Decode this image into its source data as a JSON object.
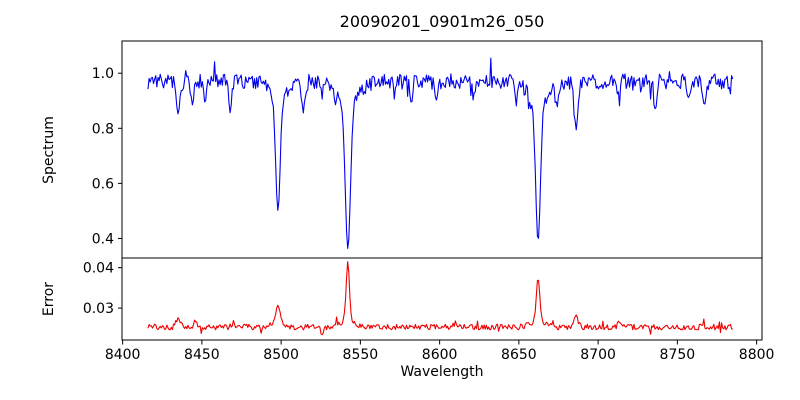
{
  "chart_data": {
    "type": "line",
    "title": "20090201_0901m26_050",
    "xlabel": "Wavelength",
    "xlim": [
      8399.6,
      8803.4
    ],
    "xticks": [
      8400,
      8450,
      8500,
      8550,
      8600,
      8650,
      8700,
      8750,
      8800
    ],
    "data_x_range": [
      8416,
      8785
    ],
    "grid": false,
    "legend": "none",
    "panels": [
      {
        "name": "spectrum",
        "ylabel": "Spectrum",
        "line_color": "#0000ee",
        "ylim": [
          0.329,
          1.117
        ],
        "yticks": [
          0.4,
          0.6,
          0.8,
          1.0
        ],
        "ytick_labels": [
          "0.4",
          "0.6",
          "0.8",
          "1.0"
        ],
        "continuum_level": 0.97,
        "noise_amplitude": 0.028,
        "down_spike": {
          "prob": 0.06,
          "max": 0.05
        },
        "up_spike": {
          "prob": 0.025,
          "max": 0.08
        },
        "x_start": 8416,
        "x_end": 8785,
        "x_step": 0.7,
        "seed": 7,
        "absorption_lines": [
          {
            "center": 8435.0,
            "depth": 0.12,
            "sigma": 1.1
          },
          {
            "center": 8444.0,
            "depth": 0.09,
            "sigma": 0.9
          },
          {
            "center": 8452.0,
            "depth": 0.08,
            "sigma": 0.9
          },
          {
            "center": 8468.0,
            "depth": 0.1,
            "sigma": 1.0
          },
          {
            "center": 8498.0,
            "depth": 0.41,
            "sigma": 1.4,
            "wing_depth": 0.06,
            "wing_sigma": 5
          },
          {
            "center": 8514.0,
            "depth": 0.1,
            "sigma": 1.1
          },
          {
            "center": 8542.1,
            "depth": 0.53,
            "sigma": 1.6,
            "wing_depth": 0.08,
            "wing_sigma": 7
          },
          {
            "center": 8582.0,
            "depth": 0.07,
            "sigma": 0.9
          },
          {
            "center": 8598.0,
            "depth": 0.07,
            "sigma": 0.9
          },
          {
            "center": 8621.0,
            "depth": 0.08,
            "sigma": 0.9
          },
          {
            "center": 8648.0,
            "depth": 0.07,
            "sigma": 0.9
          },
          {
            "center": 8662.1,
            "depth": 0.5,
            "sigma": 1.5,
            "wing_depth": 0.08,
            "wing_sigma": 6
          },
          {
            "center": 8674.0,
            "depth": 0.09,
            "sigma": 0.9
          },
          {
            "center": 8686.0,
            "depth": 0.16,
            "sigma": 1.2
          },
          {
            "center": 8713.0,
            "depth": 0.08,
            "sigma": 0.9
          },
          {
            "center": 8736.0,
            "depth": 0.08,
            "sigma": 0.9
          },
          {
            "center": 8757.0,
            "depth": 0.07,
            "sigma": 0.9
          },
          {
            "center": 8767.0,
            "depth": 0.09,
            "sigma": 0.9
          }
        ],
        "key_minima": [
          {
            "wavelength": 8498,
            "flux": 0.5
          },
          {
            "wavelength": 8542,
            "flux": 0.36
          },
          {
            "wavelength": 8662,
            "flux": 0.39
          }
        ]
      },
      {
        "name": "error",
        "ylabel": "Error",
        "line_color": "#ee0000",
        "ylim": [
          0.0221,
          0.0424
        ],
        "yticks": [
          0.03,
          0.04
        ],
        "ytick_labels": [
          "0.03",
          "0.04"
        ],
        "baseline_level": 0.0253,
        "noise_amplitude": 0.0007,
        "down_spike": {
          "prob": 0.03,
          "max": 0.0015
        },
        "up_spike": {
          "prob": 0.05,
          "max": 0.002
        },
        "x_start": 8416,
        "x_end": 8785,
        "x_step": 0.7,
        "seed": 12,
        "peaks": [
          {
            "center": 8435.0,
            "height": 0.0022,
            "sigma": 1.2
          },
          {
            "center": 8446.0,
            "height": 0.0017,
            "sigma": 1.0
          },
          {
            "center": 8470.0,
            "height": 0.0012,
            "sigma": 1.0
          },
          {
            "center": 8498.0,
            "height": 0.0042,
            "sigma": 1.4,
            "wing_height": 0.001,
            "wing_sigma": 4
          },
          {
            "center": 8526.0,
            "height": -0.0018,
            "sigma": 0.8
          },
          {
            "center": 8542.1,
            "height": 0.0142,
            "sigma": 1.0,
            "wing_height": 0.002,
            "wing_sigma": 4
          },
          {
            "center": 8610.0,
            "height": 0.001,
            "sigma": 1.0
          },
          {
            "center": 8662.1,
            "height": 0.0105,
            "sigma": 1.0,
            "wing_height": 0.0018,
            "wing_sigma": 4
          },
          {
            "center": 8686.0,
            "height": 0.0028,
            "sigma": 1.2
          },
          {
            "center": 8713.0,
            "height": 0.0009,
            "sigma": 1.0
          },
          {
            "center": 8766.0,
            "height": 0.0011,
            "sigma": 1.0
          }
        ],
        "key_maxima": [
          {
            "wavelength": 8498,
            "error": 0.0305
          },
          {
            "wavelength": 8542,
            "error": 0.0415
          },
          {
            "wavelength": 8662,
            "error": 0.0375
          }
        ]
      }
    ]
  }
}
